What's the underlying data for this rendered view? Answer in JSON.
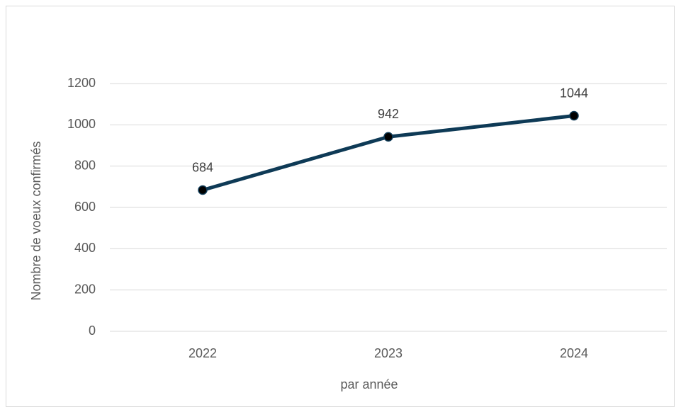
{
  "chart_data": {
    "type": "line",
    "x_label": "par année",
    "y_label": "Nombre de voeux confirmés",
    "categories": [
      "2022",
      "2023",
      "2024"
    ],
    "series": [
      {
        "name": "Nombre de voeux confirmés",
        "color": "#0e3a56",
        "values": [
          684,
          942,
          1044
        ]
      }
    ],
    "ylim": [
      0,
      1200
    ],
    "yticks": [
      0,
      200,
      400,
      600,
      800,
      1000,
      1200
    ],
    "grid": true,
    "data_labels": true,
    "legend": false
  }
}
